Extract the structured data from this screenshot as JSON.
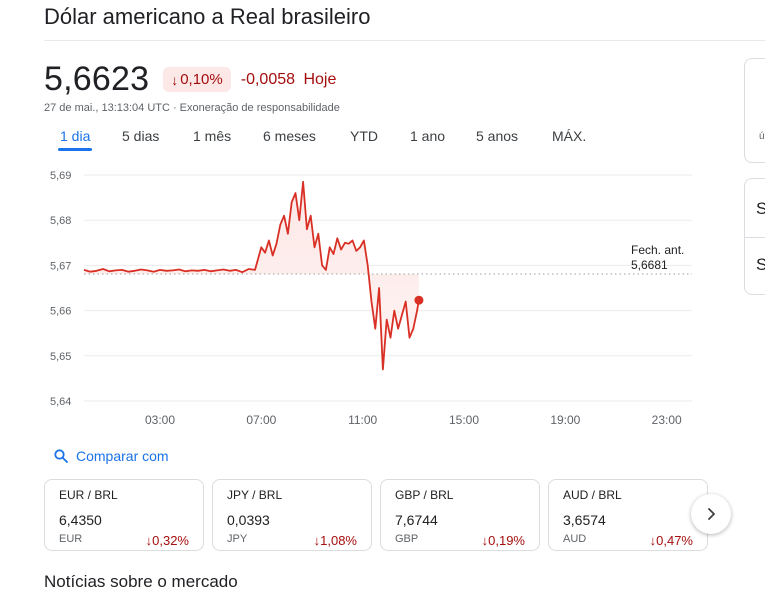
{
  "header": {
    "title": "Dólar americano a Real brasileiro"
  },
  "quote": {
    "price": "5,6623",
    "pct_change": "0,10%",
    "abs_change": "-0,0058",
    "period_label": "Hoje",
    "timestamp": "27 de mai., 13:13:04 UTC",
    "separator": "·",
    "disclaimer": "Exoneração de responsabilidade"
  },
  "ranges": [
    {
      "label": "1 dia",
      "active": true
    },
    {
      "label": "5 dias",
      "active": false
    },
    {
      "label": "1 mês",
      "active": false
    },
    {
      "label": "6 meses",
      "active": false
    },
    {
      "label": "YTD",
      "active": false
    },
    {
      "label": "1 ano",
      "active": false
    },
    {
      "label": "5 anos",
      "active": false
    },
    {
      "label": "MÁX.",
      "active": false
    }
  ],
  "chart_data": {
    "type": "area",
    "x_unit": "hours UTC",
    "xlim": [
      0,
      24
    ],
    "ylim": [
      5.64,
      5.69
    ],
    "y_ticks": [
      5.69,
      5.68,
      5.67,
      5.66,
      5.65,
      5.64
    ],
    "y_tick_labels": [
      "5,69",
      "5,68",
      "5,67",
      "5,66",
      "5,65",
      "5,64"
    ],
    "x_ticks": [
      3,
      7,
      11,
      15,
      19,
      23
    ],
    "x_tick_labels": [
      "03:00",
      "07:00",
      "11:00",
      "15:00",
      "19:00",
      "23:00"
    ],
    "reference_line": {
      "label": "Fech. ant.",
      "value_label": "5,6681",
      "value": 5.6681
    },
    "series": [
      {
        "x": [
          0,
          0.25,
          0.5,
          0.75,
          1,
          1.25,
          1.5,
          1.75,
          2,
          2.25,
          2.5,
          2.75,
          3,
          3.25,
          3.5,
          3.75,
          4,
          4.25,
          4.5,
          4.75,
          5,
          5.25,
          5.5,
          5.75,
          6,
          6.25,
          6.5,
          6.75,
          7,
          7.15,
          7.3,
          7.45,
          7.6,
          7.75,
          7.9,
          8.05,
          8.2,
          8.35,
          8.5,
          8.65,
          8.8,
          8.95,
          9.1,
          9.25,
          9.4,
          9.55,
          9.7,
          9.85,
          10,
          10.15,
          10.3,
          10.45,
          10.6,
          10.75,
          10.9,
          11.05,
          11.2,
          11.35,
          11.5,
          11.65,
          11.8,
          11.95,
          12.1,
          12.25,
          12.4,
          12.55,
          12.7,
          12.85,
          13,
          13.15,
          13.22
        ],
        "y": [
          5.669,
          5.6686,
          5.6688,
          5.6692,
          5.6687,
          5.6689,
          5.669,
          5.6686,
          5.6688,
          5.6691,
          5.6689,
          5.6686,
          5.669,
          5.6688,
          5.6689,
          5.6691,
          5.6687,
          5.6689,
          5.6688,
          5.669,
          5.6687,
          5.6689,
          5.6691,
          5.6688,
          5.669,
          5.6685,
          5.6692,
          5.669,
          5.674,
          5.6728,
          5.6755,
          5.6722,
          5.6748,
          5.679,
          5.681,
          5.677,
          5.684,
          5.686,
          5.68,
          5.6885,
          5.678,
          5.681,
          5.674,
          5.677,
          5.67,
          5.669,
          5.674,
          5.6725,
          5.676,
          5.6735,
          5.675,
          5.6748,
          5.6755,
          5.6732,
          5.674,
          5.6755,
          5.67,
          5.662,
          5.656,
          5.665,
          5.647,
          5.658,
          5.654,
          5.66,
          5.656,
          5.659,
          5.662,
          5.654,
          5.656,
          5.66,
          5.6623
        ]
      }
    ],
    "last_point": {
      "x": 13.22,
      "y": 5.6623
    },
    "line_color": "#d93025",
    "fill_color": "#fce8e6"
  },
  "compare": {
    "label": "Comparar com"
  },
  "related": [
    {
      "pair": "EUR / BRL",
      "value": "6,4350",
      "currency": "EUR",
      "change": "0,32%"
    },
    {
      "pair": "JPY / BRL",
      "value": "0,0393",
      "currency": "JPY",
      "change": "1,08%"
    },
    {
      "pair": "GBP / BRL",
      "value": "7,6744",
      "currency": "GBP",
      "change": "0,19%"
    },
    {
      "pair": "AUD / BRL",
      "value": "3,6574",
      "currency": "AUD",
      "change": "0,47%"
    }
  ],
  "news": {
    "title": "Notícias sobre o mercado"
  },
  "side": {
    "glyph": "ú",
    "letter1": "S",
    "letter2": "S"
  },
  "icons": {
    "down_arrow": "arrow-down-icon",
    "search": "search-icon",
    "next": "chevron-right-icon"
  }
}
